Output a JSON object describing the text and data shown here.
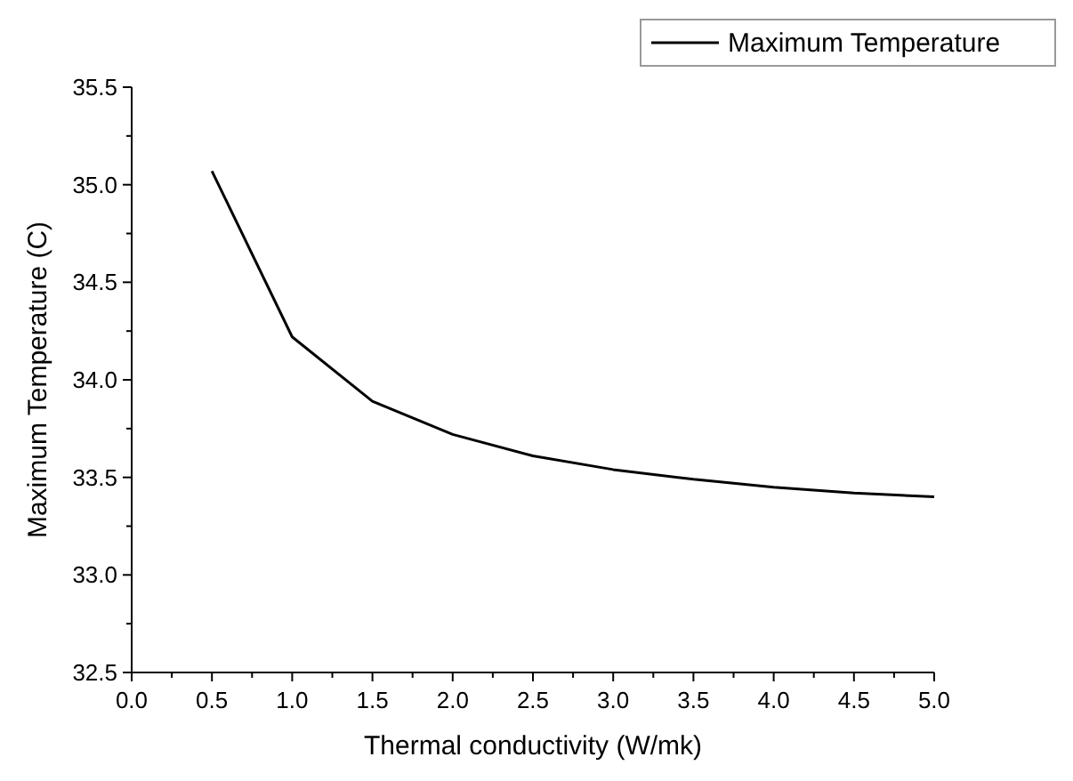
{
  "chart_data": {
    "type": "line",
    "xlabel": "Thermal conductivity (W/mk)",
    "ylabel": "Maximum Temperature (C)",
    "x": [
      0.5,
      1.0,
      1.5,
      2.0,
      2.5,
      3.0,
      3.5,
      4.0,
      4.5,
      5.0
    ],
    "series": [
      {
        "name": "Maximum Temperature",
        "color": "#000000",
        "values": [
          35.07,
          34.22,
          33.89,
          33.72,
          33.61,
          33.54,
          33.49,
          33.45,
          33.42,
          33.4
        ]
      }
    ],
    "xlim": [
      0,
      5
    ],
    "xticks": [
      {
        "value": 0,
        "label": "0.0"
      },
      0.5,
      {
        "value": 1,
        "label": "1.0"
      },
      1.5,
      {
        "value": 2,
        "label": "2.0"
      },
      2.5,
      {
        "value": 3,
        "label": "3.0"
      },
      3.5,
      {
        "value": 4,
        "label": "4.0"
      },
      4.5,
      {
        "value": 5,
        "label": "5.0"
      }
    ],
    "ylim": [
      32.5,
      35.5
    ],
    "yticks": [
      32.5,
      {
        "value": 33,
        "label": "33.0"
      },
      33.5,
      {
        "value": 34,
        "label": "34.0"
      },
      34.5,
      {
        "value": 35,
        "label": "35.0"
      },
      35.5
    ],
    "grid": false,
    "legend": "top right",
    "marker": "none",
    "line_style": "solid"
  }
}
